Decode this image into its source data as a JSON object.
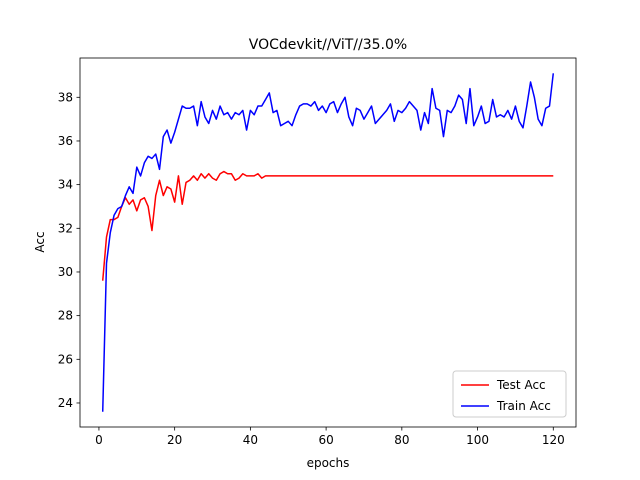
{
  "chart_data": {
    "type": "line",
    "title": "VOCdevkit//ViT//35.0%",
    "xlabel": "epochs",
    "ylabel": "Acc",
    "xlim": [
      -5,
      126
    ],
    "ylim": [
      22.9,
      39.8
    ],
    "xticks": [
      0,
      20,
      40,
      60,
      80,
      100,
      120
    ],
    "yticks": [
      24,
      26,
      28,
      30,
      32,
      34,
      36,
      38
    ],
    "grid": false,
    "legend_position": "lower-right",
    "series": [
      {
        "name": "Test Acc",
        "color": "#ff0000",
        "x": [
          1,
          2,
          3,
          4,
          5,
          6,
          7,
          8,
          9,
          10,
          11,
          12,
          13,
          14,
          15,
          16,
          17,
          18,
          19,
          20,
          21,
          22,
          23,
          24,
          25,
          26,
          27,
          28,
          29,
          30,
          31,
          32,
          33,
          34,
          35,
          36,
          37,
          38,
          39,
          40,
          41,
          42,
          43,
          44,
          45,
          46,
          47,
          48,
          49,
          50,
          51,
          52,
          53,
          54,
          55,
          56,
          57,
          58,
          59,
          60,
          61,
          62,
          63,
          64,
          65,
          66,
          67,
          68,
          69,
          70,
          71,
          72,
          73,
          74,
          75,
          76,
          77,
          78,
          79,
          80,
          81,
          82,
          83,
          84,
          85,
          86,
          87,
          88,
          89,
          90,
          91,
          92,
          93,
          94,
          95,
          96,
          97,
          98,
          99,
          100,
          101,
          102,
          103,
          104,
          105,
          106,
          107,
          108,
          109,
          110,
          111,
          112,
          113,
          114,
          115,
          116,
          117,
          118,
          119,
          120
        ],
        "values": [
          29.6,
          31.6,
          32.4,
          32.4,
          32.5,
          33.0,
          33.4,
          33.1,
          33.3,
          32.8,
          33.3,
          33.4,
          33.0,
          31.9,
          33.5,
          34.2,
          33.5,
          33.9,
          33.8,
          33.2,
          34.4,
          33.1,
          34.1,
          34.2,
          34.4,
          34.2,
          34.5,
          34.3,
          34.5,
          34.3,
          34.2,
          34.5,
          34.6,
          34.5,
          34.5,
          34.2,
          34.3,
          34.5,
          34.4,
          34.4,
          34.4,
          34.5,
          34.3,
          34.4,
          34.4,
          34.4,
          34.4,
          34.4,
          34.4,
          34.4,
          34.4,
          34.4,
          34.4,
          34.4,
          34.4,
          34.4,
          34.4,
          34.4,
          34.4,
          34.4,
          34.4,
          34.4,
          34.4,
          34.4,
          34.4,
          34.4,
          34.4,
          34.4,
          34.4,
          34.4,
          34.4,
          34.4,
          34.4,
          34.4,
          34.4,
          34.4,
          34.4,
          34.4,
          34.4,
          34.4,
          34.4,
          34.4,
          34.4,
          34.4,
          34.4,
          34.4,
          34.4,
          34.4,
          34.4,
          34.4,
          34.4,
          34.4,
          34.4,
          34.4,
          34.4,
          34.4,
          34.4,
          34.4,
          34.4,
          34.4,
          34.4,
          34.4,
          34.4,
          34.4,
          34.4,
          34.4,
          34.4,
          34.4,
          34.4,
          34.4,
          34.4,
          34.4,
          34.4,
          34.4,
          34.4,
          34.4,
          34.4,
          34.4,
          34.4,
          34.4
        ]
      },
      {
        "name": "Train Acc",
        "color": "#0000ff",
        "x": [
          1,
          2,
          3,
          4,
          5,
          6,
          7,
          8,
          9,
          10,
          11,
          12,
          13,
          14,
          15,
          16,
          17,
          18,
          19,
          20,
          21,
          22,
          23,
          24,
          25,
          26,
          27,
          28,
          29,
          30,
          31,
          32,
          33,
          34,
          35,
          36,
          37,
          38,
          39,
          40,
          41,
          42,
          43,
          44,
          45,
          46,
          47,
          48,
          49,
          50,
          51,
          52,
          53,
          54,
          55,
          56,
          57,
          58,
          59,
          60,
          61,
          62,
          63,
          64,
          65,
          66,
          67,
          68,
          69,
          70,
          71,
          72,
          73,
          74,
          75,
          76,
          77,
          78,
          79,
          80,
          81,
          82,
          83,
          84,
          85,
          86,
          87,
          88,
          89,
          90,
          91,
          92,
          93,
          94,
          95,
          96,
          97,
          98,
          99,
          100,
          101,
          102,
          103,
          104,
          105,
          106,
          107,
          108,
          109,
          110,
          111,
          112,
          113,
          114,
          115,
          116,
          117,
          118,
          119,
          120
        ],
        "values": [
          23.6,
          30.4,
          31.8,
          32.6,
          32.9,
          33.0,
          33.5,
          33.9,
          33.6,
          34.8,
          34.4,
          35.0,
          35.3,
          35.2,
          35.4,
          34.7,
          36.2,
          36.5,
          35.9,
          36.4,
          37.0,
          37.6,
          37.5,
          37.5,
          37.6,
          36.7,
          37.8,
          37.1,
          36.8,
          37.4,
          37.0,
          37.6,
          37.2,
          37.3,
          37.0,
          37.3,
          37.2,
          37.4,
          36.5,
          37.4,
          37.2,
          37.6,
          37.6,
          37.9,
          38.2,
          37.3,
          37.4,
          36.7,
          36.8,
          36.9,
          36.7,
          37.2,
          37.6,
          37.7,
          37.7,
          37.6,
          37.8,
          37.4,
          37.6,
          37.3,
          37.7,
          37.8,
          37.3,
          37.7,
          38.0,
          37.1,
          36.7,
          37.5,
          37.4,
          37.0,
          37.3,
          37.6,
          36.8,
          37.0,
          37.2,
          37.4,
          37.7,
          36.9,
          37.4,
          37.3,
          37.5,
          37.8,
          37.6,
          37.4,
          36.5,
          37.3,
          36.8,
          38.4,
          37.5,
          37.4,
          36.2,
          37.4,
          37.3,
          37.6,
          38.1,
          37.9,
          36.8,
          38.4,
          36.7,
          37.1,
          37.6,
          36.8,
          36.9,
          37.9,
          37.1,
          37.2,
          37.1,
          37.4,
          37.0,
          37.6,
          36.9,
          36.6,
          37.6,
          38.7,
          38.0,
          37.0,
          36.7,
          37.5,
          37.6,
          39.1
        ]
      }
    ]
  }
}
